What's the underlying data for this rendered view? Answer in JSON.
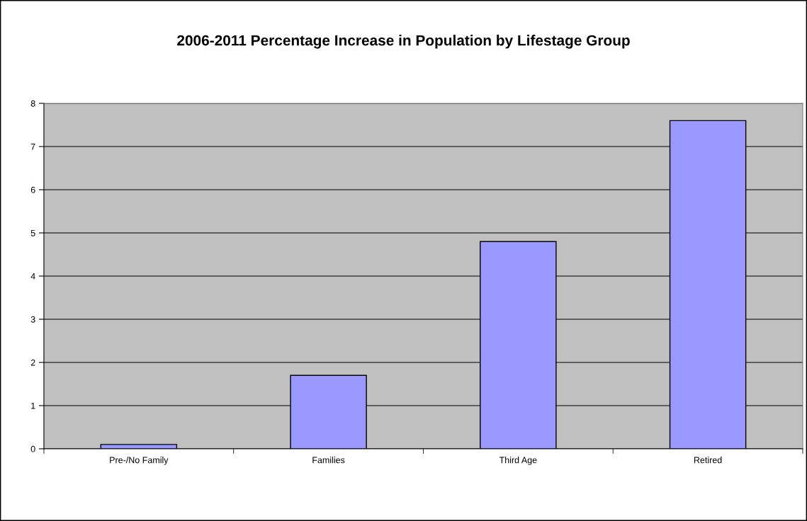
{
  "chart_data": {
    "type": "bar",
    "title": "2006-2011 Percentage Increase in Population by Lifestage Group",
    "categories": [
      "Pre-/No Family",
      "Families",
      "Third Age",
      "Retired"
    ],
    "values": [
      0.1,
      1.7,
      4.8,
      7.6
    ],
    "color": "#9999ff",
    "ylim": [
      0,
      8
    ],
    "yticks": [
      0,
      1,
      2,
      3,
      4,
      5,
      6,
      7,
      8
    ],
    "grid": "y"
  }
}
